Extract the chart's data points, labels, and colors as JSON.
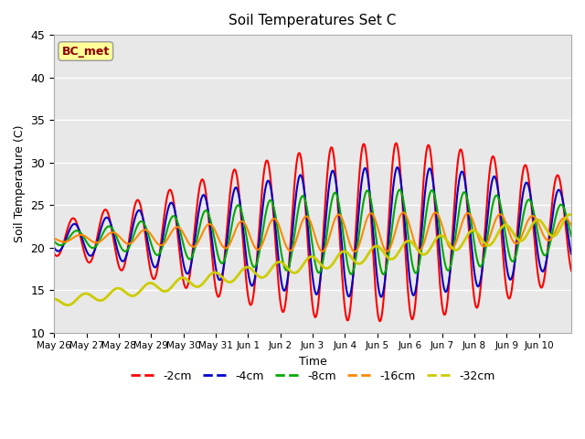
{
  "title": "Soil Temperatures Set C",
  "xlabel": "Time",
  "ylabel": "Soil Temperature (C)",
  "ylim": [
    10,
    45
  ],
  "annotation": "BC_met",
  "annotation_color": "#8B0000",
  "annotation_bg": "#FFFF99",
  "plot_bg": "#E8E8E8",
  "legend_entries": [
    "-2cm",
    "-4cm",
    "-8cm",
    "-16cm",
    "-32cm"
  ],
  "line_colors": [
    "#FF0000",
    "#0000CC",
    "#00AA00",
    "#FF8800",
    "#CCCC00"
  ],
  "line_widths": [
    1.5,
    1.5,
    1.5,
    1.5,
    2.0
  ],
  "x_tick_labels": [
    "May 26",
    "May 27",
    "May 28",
    "May 29",
    "May 30",
    "May 31",
    "Jun 1",
    "Jun 2",
    "Jun 3",
    "Jun 4",
    "Jun 5",
    "Jun 6",
    "Jun 7",
    "Jun 8",
    "Jun 9",
    "Jun 10"
  ],
  "num_days": 16
}
